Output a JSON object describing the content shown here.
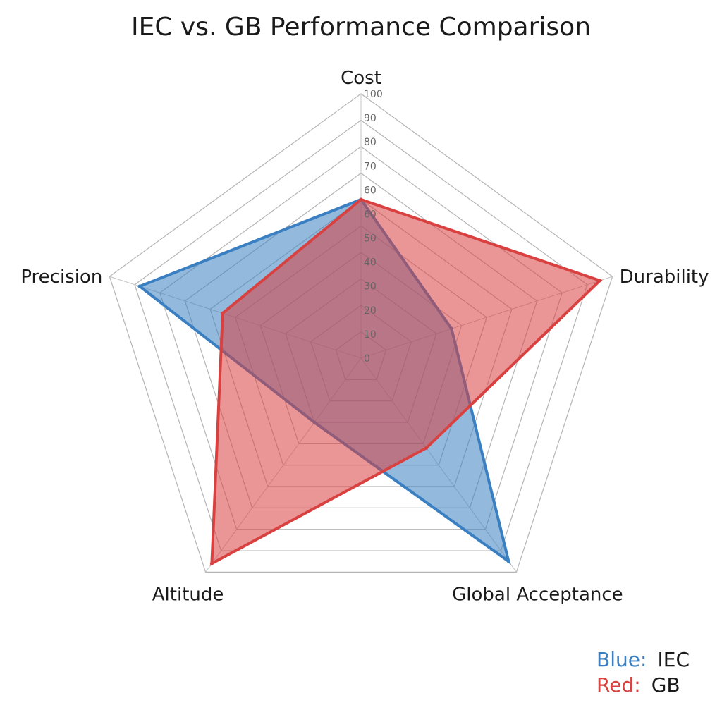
{
  "chart_data": {
    "type": "radar",
    "title": "IEC vs. GB Performance Comparison",
    "axes": [
      "Cost",
      "Durability",
      "Global Acceptance",
      "Altitude",
      "Precision"
    ],
    "r_range": [
      0,
      100
    ],
    "r_ticks": [
      "0",
      "10",
      "20",
      "30",
      "40",
      "50",
      "60",
      "60",
      "70",
      "80",
      "90",
      "100"
    ],
    "grid": true,
    "series": [
      {
        "name": "IEC",
        "color": "#3a7fc1",
        "values": [
          60,
          36,
          95,
          30,
          88
        ]
      },
      {
        "name": "GB",
        "color": "#d94040",
        "values": [
          60,
          95,
          42,
          96,
          55
        ]
      }
    ],
    "legend": {
      "position": "bottom-right",
      "items": [
        {
          "key": "Blue:",
          "value": "IEC",
          "color": "#3a7fc1"
        },
        {
          "key": "Red:",
          "value": "GB",
          "color": "#d94040"
        }
      ]
    }
  }
}
